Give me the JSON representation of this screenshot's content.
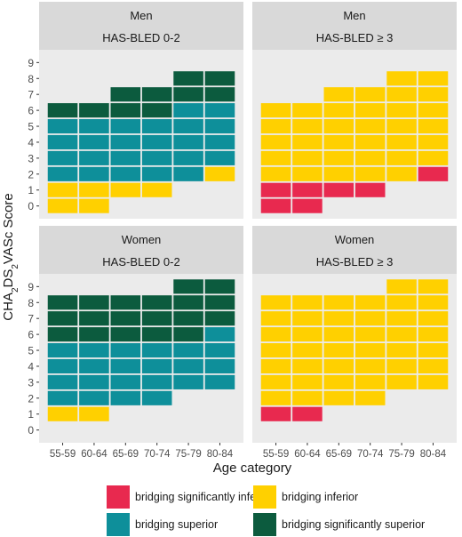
{
  "chart_data": {
    "type": "heatmap",
    "ylabel": "CHA2DS2VASc Score",
    "ylabel_parts": [
      {
        "t": "CHA",
        "sub": false
      },
      {
        "t": "2",
        "sub": true
      },
      {
        "t": "DS",
        "sub": false
      },
      {
        "t": "2",
        "sub": true
      },
      {
        "t": "VASc Score",
        "sub": false
      }
    ],
    "xlabel": "Age category",
    "x_categories": [
      "55-59",
      "60-64",
      "65-69",
      "70-74",
      "75-79",
      "80-84"
    ],
    "y_ticks": [
      "0",
      "1",
      "2",
      "3",
      "4",
      "5",
      "6",
      "7",
      "8",
      "9"
    ],
    "colors": {
      "significantly_inferior": "#e8294f",
      "inferior": "#ffd000",
      "superior": "#0e8f9a",
      "significantly_superior": "#0c5b3e",
      "panel_bg": "#ebebeb",
      "strip_bg": "#d9d9d9"
    },
    "panels": [
      {
        "strip1": "Men",
        "strip2": "HAS-BLED 0-2",
        "columns": [
          [
            "inferior",
            "inferior",
            "superior",
            "superior",
            "superior",
            "superior",
            "significantly_superior",
            null,
            null,
            null
          ],
          [
            "inferior",
            "inferior",
            "superior",
            "superior",
            "superior",
            "superior",
            "significantly_superior",
            null,
            null,
            null
          ],
          [
            null,
            "inferior",
            "superior",
            "superior",
            "superior",
            "superior",
            "significantly_superior",
            "significantly_superior",
            null,
            null
          ],
          [
            null,
            "inferior",
            "superior",
            "superior",
            "superior",
            "superior",
            "significantly_superior",
            "significantly_superior",
            null,
            null
          ],
          [
            null,
            null,
            "superior",
            "superior",
            "superior",
            "superior",
            "superior",
            "significantly_superior",
            "significantly_superior",
            null
          ],
          [
            null,
            null,
            "inferior",
            "superior",
            "superior",
            "superior",
            "superior",
            "significantly_superior",
            "significantly_superior",
            null
          ]
        ]
      },
      {
        "strip1": "Men",
        "strip2": "HAS-BLED ≥ 3",
        "columns": [
          [
            "significantly_inferior",
            "significantly_inferior",
            "inferior",
            "inferior",
            "inferior",
            "inferior",
            "inferior",
            null,
            null,
            null
          ],
          [
            "significantly_inferior",
            "significantly_inferior",
            "inferior",
            "inferior",
            "inferior",
            "inferior",
            "inferior",
            null,
            null,
            null
          ],
          [
            null,
            "significantly_inferior",
            "inferior",
            "inferior",
            "inferior",
            "inferior",
            "inferior",
            "inferior",
            null,
            null
          ],
          [
            null,
            "significantly_inferior",
            "inferior",
            "inferior",
            "inferior",
            "inferior",
            "inferior",
            "inferior",
            null,
            null
          ],
          [
            null,
            null,
            "inferior",
            "inferior",
            "inferior",
            "inferior",
            "inferior",
            "inferior",
            "inferior",
            null
          ],
          [
            null,
            null,
            "significantly_inferior",
            "inferior",
            "inferior",
            "inferior",
            "inferior",
            "inferior",
            "inferior",
            null
          ]
        ]
      },
      {
        "strip1": "Women",
        "strip2": "HAS-BLED 0-2",
        "columns": [
          [
            null,
            "inferior",
            "superior",
            "superior",
            "superior",
            "superior",
            "significantly_superior",
            "significantly_superior",
            "significantly_superior",
            null
          ],
          [
            null,
            "inferior",
            "superior",
            "superior",
            "superior",
            "superior",
            "significantly_superior",
            "significantly_superior",
            "significantly_superior",
            null
          ],
          [
            null,
            null,
            "superior",
            "superior",
            "superior",
            "superior",
            "significantly_superior",
            "significantly_superior",
            "significantly_superior",
            null
          ],
          [
            null,
            null,
            "superior",
            "superior",
            "superior",
            "superior",
            "significantly_superior",
            "significantly_superior",
            "significantly_superior",
            null
          ],
          [
            null,
            null,
            null,
            "superior",
            "superior",
            "superior",
            "significantly_superior",
            "significantly_superior",
            "significantly_superior",
            "significantly_superior"
          ],
          [
            null,
            null,
            null,
            "superior",
            "superior",
            "superior",
            "superior",
            "significantly_superior",
            "significantly_superior",
            "significantly_superior"
          ]
        ]
      },
      {
        "strip1": "Women",
        "strip2": "HAS-BLED ≥ 3",
        "columns": [
          [
            null,
            "significantly_inferior",
            "inferior",
            "inferior",
            "inferior",
            "inferior",
            "inferior",
            "inferior",
            "inferior",
            null
          ],
          [
            null,
            "significantly_inferior",
            "inferior",
            "inferior",
            "inferior",
            "inferior",
            "inferior",
            "inferior",
            "inferior",
            null
          ],
          [
            null,
            null,
            "inferior",
            "inferior",
            "inferior",
            "inferior",
            "inferior",
            "inferior",
            "inferior",
            null
          ],
          [
            null,
            null,
            "inferior",
            "inferior",
            "inferior",
            "inferior",
            "inferior",
            "inferior",
            "inferior",
            null
          ],
          [
            null,
            null,
            null,
            "inferior",
            "inferior",
            "inferior",
            "inferior",
            "inferior",
            "inferior",
            "inferior"
          ],
          [
            null,
            null,
            null,
            "inferior",
            "inferior",
            "inferior",
            "inferior",
            "inferior",
            "inferior",
            "inferior"
          ]
        ]
      }
    ],
    "legend": [
      {
        "key": "significantly_inferior",
        "label": "bridging significantly inferior"
      },
      {
        "key": "inferior",
        "label": "bridging inferior"
      },
      {
        "key": "superior",
        "label": "bridging superior"
      },
      {
        "key": "significantly_superior",
        "label": "bridging significantly superior"
      }
    ]
  }
}
